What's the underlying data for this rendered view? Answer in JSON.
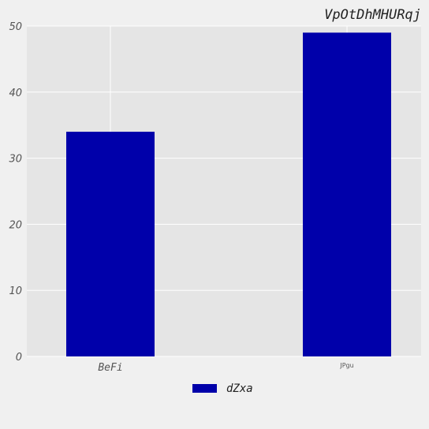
{
  "chart_data": {
    "type": "bar",
    "title": "VpOtDhMHURqj",
    "categories": [
      "BeFi",
      "JPgu"
    ],
    "series": [
      {
        "name": "dZxa",
        "values": [
          34,
          49
        ]
      }
    ],
    "ylim": [
      0,
      50
    ],
    "yticks": [
      0,
      10,
      20,
      30,
      40,
      50
    ],
    "grid": true,
    "legend_position": "bottom-center",
    "colors": {
      "bar": "#0000aa",
      "plot_background": "#e5e5e5",
      "page_background": "#f0f0f0",
      "grid": "#ffffff"
    }
  }
}
